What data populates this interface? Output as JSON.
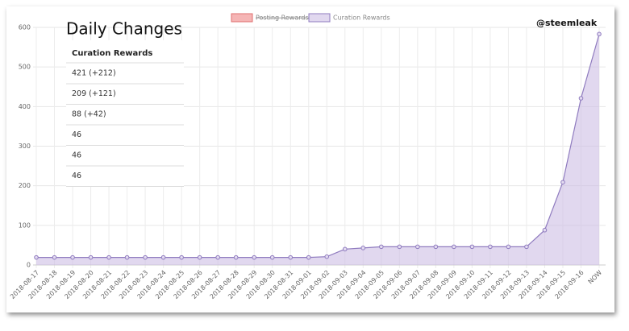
{
  "chart_data": {
    "type": "line",
    "categories": [
      "2018-08-17",
      "2018-08-18",
      "2018-08-19",
      "2018-08-20",
      "2018-08-21",
      "2018-08-22",
      "2018-08-23",
      "2018-08-24",
      "2018-08-25",
      "2018-08-26",
      "2018-08-27",
      "2018-08-28",
      "2018-08-29",
      "2018-08-30",
      "2018-08-31",
      "2018-09-01",
      "2018-09-02",
      "2018-09-03",
      "2018-09-04",
      "2018-09-05",
      "2018-09-06",
      "2018-09-07",
      "2018-09-08",
      "2018-09-09",
      "2018-09-10",
      "2018-09-11",
      "2018-09-12",
      "2018-09-13",
      "2018-09-14",
      "2018-09-15",
      "2018-09-16",
      "NOW"
    ],
    "series": [
      {
        "name": "Curation Rewards",
        "color": "#8f7bbf",
        "fill": "rgba(205,190,228,0.6)",
        "values": [
          19,
          19,
          19,
          19,
          19,
          19,
          19,
          19,
          19,
          19,
          19,
          19,
          19,
          19,
          19,
          19,
          21,
          40,
          43,
          46,
          46,
          46,
          46,
          46,
          46,
          46,
          46,
          46,
          88,
          209,
          421,
          583
        ]
      }
    ],
    "hidden_series": [
      {
        "name": "Posting Rewards",
        "color": "#f5b5b5"
      }
    ],
    "ylim": [
      0,
      600
    ],
    "yticks": [
      0,
      100,
      200,
      300,
      400,
      500,
      600
    ],
    "grid": true
  },
  "overlay": {
    "title": "Daily Changes",
    "watermark": "@steemleak",
    "table": {
      "header": "Curation Rewards",
      "rows": [
        "421 (+212)",
        "209 (+121)",
        "88 (+42)",
        "46",
        "46",
        "46"
      ]
    }
  }
}
